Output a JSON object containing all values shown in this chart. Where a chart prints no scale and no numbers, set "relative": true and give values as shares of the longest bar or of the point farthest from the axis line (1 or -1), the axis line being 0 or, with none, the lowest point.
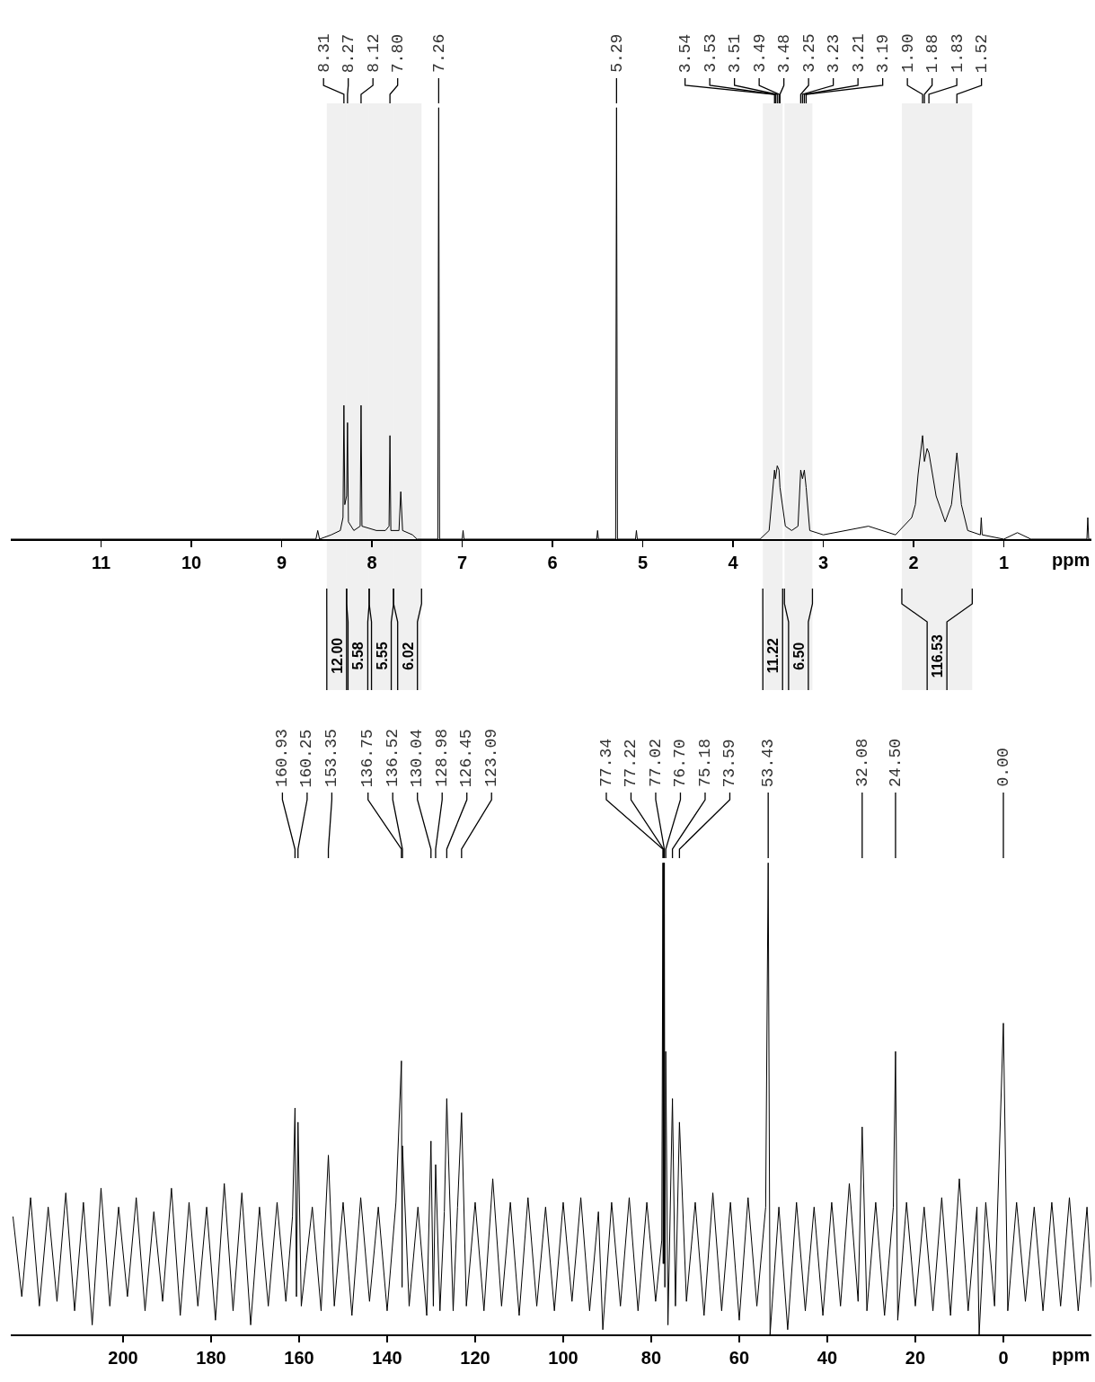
{
  "chart_data": [
    {
      "type": "line",
      "xlabel": "ppm",
      "relative": true,
      "color": "#000000",
      "xlim": [
        12,
        0.03
      ],
      "xticks": [
        11,
        10,
        9,
        8,
        7,
        6,
        5,
        4,
        3,
        2,
        1
      ],
      "x": [
        12,
        11,
        10,
        9,
        8.62,
        8.6,
        8.58,
        8.45,
        8.35,
        8.32,
        8.31,
        8.3,
        8.28,
        8.27,
        8.26,
        8.2,
        8.13,
        8.12,
        8.11,
        7.95,
        7.85,
        7.81,
        7.8,
        7.79,
        7.7,
        7.68,
        7.66,
        7.55,
        7.5,
        7.27,
        7.26,
        7.25,
        7.0,
        6.99,
        6.98,
        5.51,
        5.5,
        5.49,
        5.3,
        5.29,
        5.28,
        5.08,
        5.07,
        5.06,
        3.7,
        3.6,
        3.54,
        3.53,
        3.51,
        3.49,
        3.48,
        3.42,
        3.35,
        3.28,
        3.25,
        3.23,
        3.21,
        3.19,
        3.15,
        3.0,
        2.5,
        2.2,
        2.02,
        1.98,
        1.95,
        1.9,
        1.88,
        1.85,
        1.83,
        1.75,
        1.65,
        1.58,
        1.52,
        1.47,
        1.4,
        1.26,
        1.25,
        1.24,
        1.0,
        0.85,
        0.7,
        0.08,
        0.07,
        0.06,
        0.03
      ],
      "values": [
        0,
        0,
        0,
        0,
        0,
        0.02,
        0,
        0.01,
        0.02,
        0.05,
        0.31,
        0.08,
        0.1,
        0.27,
        0.04,
        0.02,
        0.03,
        0.31,
        0.03,
        0.02,
        0.02,
        0.03,
        0.24,
        0.02,
        0.02,
        0.11,
        0.02,
        0.01,
        0,
        0,
        1,
        0,
        0,
        0.02,
        0,
        0,
        0.02,
        0,
        0,
        1,
        0,
        0,
        0.02,
        0,
        0,
        0.02,
        0.16,
        0.14,
        0.17,
        0.16,
        0.12,
        0.03,
        0.02,
        0.03,
        0.16,
        0.14,
        0.16,
        0.12,
        0.02,
        0.01,
        0.03,
        0.01,
        0.05,
        0.08,
        0.15,
        0.24,
        0.18,
        0.21,
        0.2,
        0.1,
        0.04,
        0.08,
        0.2,
        0.08,
        0.02,
        0.01,
        0.05,
        0.01,
        0,
        0.015,
        0,
        0,
        0.05,
        0,
        0
      ],
      "annotations": [
        {
          "text": "8.31",
          "x": 8.31
        },
        {
          "text": "8.27",
          "x": 8.27
        },
        {
          "text": "8.12",
          "x": 8.12
        },
        {
          "text": "7.80",
          "x": 7.8
        },
        {
          "text": "7.26",
          "x": 7.26
        },
        {
          "text": "5.29",
          "x": 5.29
        },
        {
          "text": "3.54",
          "x": 3.54
        },
        {
          "text": "3.53",
          "x": 3.53
        },
        {
          "text": "3.51",
          "x": 3.51
        },
        {
          "text": "3.49",
          "x": 3.49
        },
        {
          "text": "3.48",
          "x": 3.48
        },
        {
          "text": "3.25",
          "x": 3.25
        },
        {
          "text": "3.23",
          "x": 3.23
        },
        {
          "text": "3.21",
          "x": 3.21
        },
        {
          "text": "3.19",
          "x": 3.19
        },
        {
          "text": "1.90",
          "x": 1.9
        },
        {
          "text": "1.88",
          "x": 1.88
        },
        {
          "text": "1.83",
          "x": 1.83
        },
        {
          "text": "1.52",
          "x": 1.52
        }
      ],
      "bands": [
        {
          "axis": "x",
          "from": 8.5,
          "to": 8.28,
          "label": "12.00"
        },
        {
          "axis": "x",
          "from": 8.28,
          "to": 8.03,
          "label": "5.58"
        },
        {
          "axis": "x",
          "from": 8.03,
          "to": 7.76,
          "label": "5.55"
        },
        {
          "axis": "x",
          "from": 7.76,
          "to": 7.45,
          "label": "6.02"
        },
        {
          "axis": "x",
          "from": 3.67,
          "to": 3.45,
          "label": "11.22"
        },
        {
          "axis": "x",
          "from": 3.43,
          "to": 3.12,
          "label": "6.50"
        },
        {
          "axis": "x",
          "from": 2.13,
          "to": 1.35,
          "label": "116.53"
        }
      ]
    },
    {
      "type": "line",
      "xlabel": "ppm",
      "relative": true,
      "color": "#000000",
      "xlim": [
        225.5,
        -20
      ],
      "xticks": [
        200,
        180,
        160,
        140,
        120,
        100,
        80,
        60,
        40,
        20,
        0
      ],
      "x": [
        225,
        223,
        221,
        219,
        217,
        215,
        213,
        211,
        209,
        207,
        205,
        203,
        201,
        199,
        197,
        195,
        193,
        191,
        189,
        187,
        185,
        183,
        181,
        179,
        177,
        175,
        173,
        171,
        169,
        167,
        165,
        163,
        161.5,
        160.93,
        160.6,
        160.25,
        159.5,
        157,
        155,
        153.35,
        152,
        150,
        148,
        146,
        144,
        142,
        140,
        138,
        136.75,
        136.6,
        136.52,
        135,
        133,
        131,
        130.04,
        129.5,
        128.98,
        128,
        127,
        126.45,
        125,
        124,
        123.09,
        122,
        120,
        118,
        116,
        114,
        112,
        110,
        108,
        106,
        104,
        102,
        100,
        98,
        96,
        94,
        92,
        91,
        89,
        87,
        85,
        83,
        81,
        79,
        77.6,
        77.34,
        77.28,
        77.22,
        77.1,
        77.02,
        76.9,
        76.7,
        76.2,
        75.18,
        74.5,
        73.59,
        72,
        70,
        68,
        66,
        64,
        62,
        60,
        58,
        56,
        54,
        53.43,
        53,
        51,
        49,
        47,
        45,
        43,
        41,
        39,
        37,
        35,
        33,
        32.08,
        31,
        29,
        27,
        25,
        24.5,
        24,
        22,
        20,
        18,
        16,
        14,
        12,
        10,
        8,
        6,
        5.5,
        4,
        2,
        0,
        -1,
        -3,
        -5,
        -7,
        -9,
        -11,
        -13,
        -15,
        -17,
        -19,
        -20
      ],
      "values": [
        0.25,
        0.08,
        0.29,
        0.06,
        0.27,
        0.07,
        0.3,
        0.05,
        0.28,
        0.02,
        0.31,
        0.06,
        0.27,
        0.08,
        0.29,
        0.05,
        0.26,
        0.07,
        0.31,
        0.04,
        0.28,
        0.06,
        0.27,
        0.03,
        0.32,
        0.05,
        0.3,
        0.02,
        0.27,
        0.06,
        0.28,
        0.07,
        0.25,
        0.48,
        0.08,
        0.45,
        0.06,
        0.27,
        0.05,
        0.38,
        0.06,
        0.28,
        0.04,
        0.29,
        0.07,
        0.27,
        0.05,
        0.28,
        0.58,
        0.1,
        0.4,
        0.06,
        0.27,
        0.04,
        0.41,
        0.06,
        0.36,
        0.05,
        0.26,
        0.5,
        0.05,
        0.27,
        0.47,
        0.06,
        0.28,
        0.05,
        0.33,
        0.06,
        0.28,
        0.04,
        0.29,
        0.06,
        0.27,
        0.05,
        0.28,
        0.07,
        0.29,
        0.05,
        0.26,
        0.01,
        0.28,
        0.06,
        0.29,
        0.05,
        0.28,
        0.07,
        0.2,
        1,
        0.15,
        1,
        0.15,
        1,
        0.1,
        0.6,
        0.02,
        0.5,
        0.06,
        0.45,
        0.07,
        0.28,
        0.04,
        0.3,
        0.05,
        0.28,
        0.03,
        0.29,
        0.06,
        0.27,
        1,
        0,
        0.27,
        0.01,
        0.28,
        0.05,
        0.27,
        0.04,
        0.28,
        0.06,
        0.32,
        0.07,
        0.44,
        0.05,
        0.28,
        0.04,
        0.27,
        0.6,
        0.03,
        0.28,
        0.06,
        0.27,
        0.05,
        0.29,
        0.04,
        0.33,
        0.05,
        0.27,
        0,
        0.28,
        0.06,
        0.66,
        0.05,
        0.28,
        0.07,
        0.27,
        0.05,
        0.28,
        0.06,
        0.29,
        0.05,
        0.27,
        0.1
      ],
      "annotations": [
        {
          "text": "160.93",
          "x": 160.93
        },
        {
          "text": "160.25",
          "x": 160.25
        },
        {
          "text": "153.35",
          "x": 153.35
        },
        {
          "text": "136.75",
          "x": 136.75
        },
        {
          "text": "136.52",
          "x": 136.52
        },
        {
          "text": "130.04",
          "x": 130.04
        },
        {
          "text": "128.98",
          "x": 128.98
        },
        {
          "text": "126.45",
          "x": 126.45
        },
        {
          "text": "123.09",
          "x": 123.09
        },
        {
          "text": "77.34",
          "x": 77.34
        },
        {
          "text": "77.22",
          "x": 77.22
        },
        {
          "text": "77.02",
          "x": 77.02
        },
        {
          "text": "76.70",
          "x": 76.7
        },
        {
          "text": "75.18",
          "x": 75.18
        },
        {
          "text": "73.59",
          "x": 73.59
        },
        {
          "text": "53.43",
          "x": 53.43
        },
        {
          "text": "32.08",
          "x": 32.08
        },
        {
          "text": "24.50",
          "x": 24.5
        },
        {
          "text": "0.00",
          "x": 0
        }
      ]
    }
  ]
}
